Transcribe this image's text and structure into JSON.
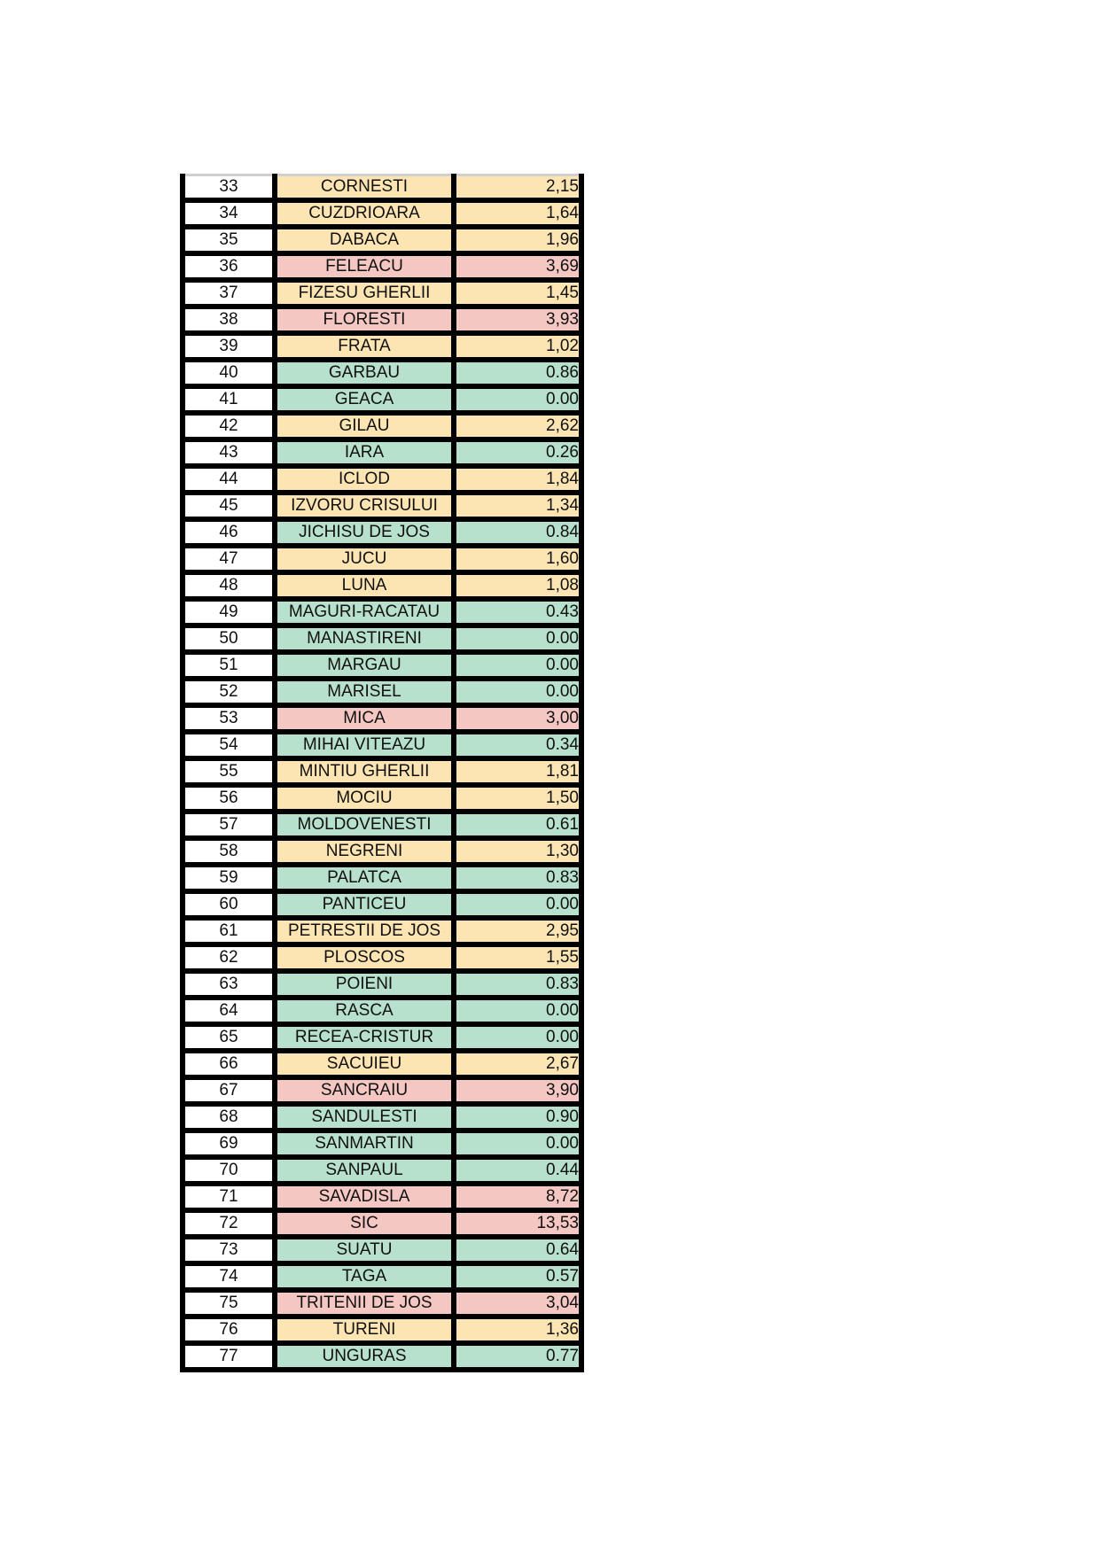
{
  "colors": {
    "yellow": "#fce5b2",
    "red": "#f4c7c3",
    "green": "#b7e1cd"
  },
  "rows": [
    {
      "n": "33",
      "name": "CORNESTI",
      "value": "2,15",
      "status": "yellow"
    },
    {
      "n": "34",
      "name": "CUZDRIOARA",
      "value": "1,64",
      "status": "yellow"
    },
    {
      "n": "35",
      "name": "DABACA",
      "value": "1,96",
      "status": "yellow"
    },
    {
      "n": "36",
      "name": "FELEACU",
      "value": "3,69",
      "status": "red"
    },
    {
      "n": "37",
      "name": "FIZESU GHERLII",
      "value": "1,45",
      "status": "yellow"
    },
    {
      "n": "38",
      "name": "FLORESTI",
      "value": "3,93",
      "status": "red"
    },
    {
      "n": "39",
      "name": "FRATA",
      "value": "1,02",
      "status": "yellow"
    },
    {
      "n": "40",
      "name": "GARBAU",
      "value": "0.86",
      "status": "green"
    },
    {
      "n": "41",
      "name": "GEACA",
      "value": "0.00",
      "status": "green"
    },
    {
      "n": "42",
      "name": "GILAU",
      "value": "2,62",
      "status": "yellow"
    },
    {
      "n": "43",
      "name": "IARA",
      "value": "0.26",
      "status": "green"
    },
    {
      "n": "44",
      "name": "ICLOD",
      "value": "1,84",
      "status": "yellow"
    },
    {
      "n": "45",
      "name": "IZVORU CRISULUI",
      "value": "1,34",
      "status": "yellow"
    },
    {
      "n": "46",
      "name": "JICHISU DE JOS",
      "value": "0.84",
      "status": "green"
    },
    {
      "n": "47",
      "name": "JUCU",
      "value": "1,60",
      "status": "yellow"
    },
    {
      "n": "48",
      "name": "LUNA",
      "value": "1,08",
      "status": "yellow"
    },
    {
      "n": "49",
      "name": "MAGURI-RACATAU",
      "value": "0.43",
      "status": "green"
    },
    {
      "n": "50",
      "name": "MANASTIRENI",
      "value": "0.00",
      "status": "green"
    },
    {
      "n": "51",
      "name": "MARGAU",
      "value": "0.00",
      "status": "green"
    },
    {
      "n": "52",
      "name": "MARISEL",
      "value": "0.00",
      "status": "green"
    },
    {
      "n": "53",
      "name": "MICA",
      "value": "3,00",
      "status": "red"
    },
    {
      "n": "54",
      "name": "MIHAI VITEAZU",
      "value": "0.34",
      "status": "green"
    },
    {
      "n": "55",
      "name": "MINTIU GHERLII",
      "value": "1,81",
      "status": "yellow"
    },
    {
      "n": "56",
      "name": "MOCIU",
      "value": "1,50",
      "status": "yellow"
    },
    {
      "n": "57",
      "name": "MOLDOVENESTI",
      "value": "0.61",
      "status": "green"
    },
    {
      "n": "58",
      "name": "NEGRENI",
      "value": "1,30",
      "status": "yellow"
    },
    {
      "n": "59",
      "name": "PALATCA",
      "value": "0.83",
      "status": "green"
    },
    {
      "n": "60",
      "name": "PANTICEU",
      "value": "0.00",
      "status": "green"
    },
    {
      "n": "61",
      "name": "PETRESTII DE JOS",
      "value": "2,95",
      "status": "yellow"
    },
    {
      "n": "62",
      "name": "PLOSCOS",
      "value": "1,55",
      "status": "yellow"
    },
    {
      "n": "63",
      "name": "POIENI",
      "value": "0.83",
      "status": "green"
    },
    {
      "n": "64",
      "name": "RASCA",
      "value": "0.00",
      "status": "green"
    },
    {
      "n": "65",
      "name": "RECEA-CRISTUR",
      "value": "0.00",
      "status": "green"
    },
    {
      "n": "66",
      "name": "SACUIEU",
      "value": "2,67",
      "status": "yellow"
    },
    {
      "n": "67",
      "name": "SANCRAIU",
      "value": "3,90",
      "status": "red"
    },
    {
      "n": "68",
      "name": "SANDULESTI",
      "value": "0.90",
      "status": "green"
    },
    {
      "n": "69",
      "name": "SANMARTIN",
      "value": "0.00",
      "status": "green"
    },
    {
      "n": "70",
      "name": "SANPAUL",
      "value": "0.44",
      "status": "green"
    },
    {
      "n": "71",
      "name": "SAVADISLA",
      "value": "8,72",
      "status": "red"
    },
    {
      "n": "72",
      "name": "SIC",
      "value": "13,53",
      "status": "red"
    },
    {
      "n": "73",
      "name": "SUATU",
      "value": "0.64",
      "status": "green"
    },
    {
      "n": "74",
      "name": "TAGA",
      "value": "0.57",
      "status": "green"
    },
    {
      "n": "75",
      "name": "TRITENII DE JOS",
      "value": "3,04",
      "status": "red"
    },
    {
      "n": "76",
      "name": "TURENI",
      "value": "1,36",
      "status": "yellow"
    },
    {
      "n": "77",
      "name": "UNGURAS",
      "value": "0.77",
      "status": "green"
    }
  ]
}
